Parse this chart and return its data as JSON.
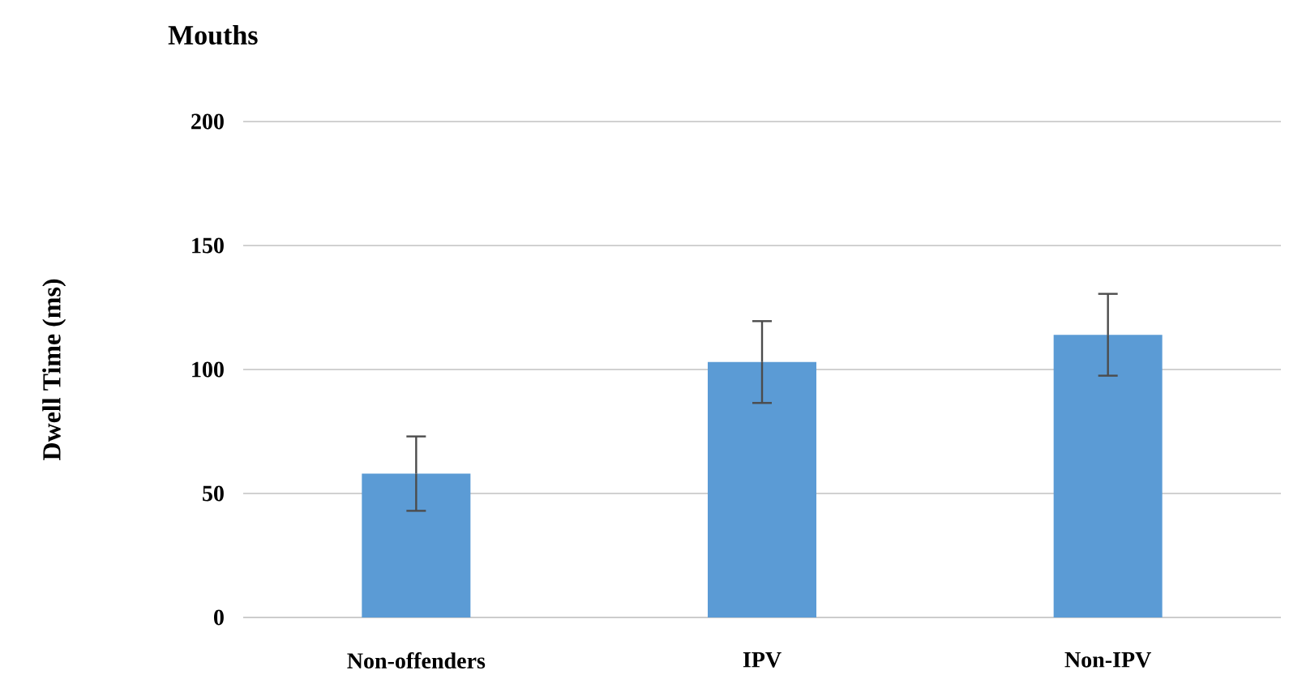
{
  "chart_data": {
    "type": "bar",
    "title": "Mouths",
    "ylabel": "Dwell Time (ms)",
    "categories": [
      "Non-offenders",
      "IPV",
      "Non-IPV"
    ],
    "values": [
      58,
      103,
      114
    ],
    "errors": [
      15,
      16.5,
      16.5
    ],
    "color": "#5b9bd5",
    "ylim": [
      0,
      200
    ],
    "yticks": [
      0,
      50,
      100,
      150,
      200
    ],
    "grid": "y"
  }
}
